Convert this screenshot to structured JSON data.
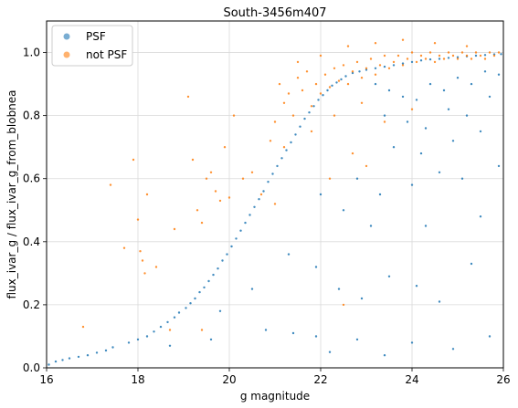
{
  "chart_data": {
    "type": "scatter",
    "title": "South-3456m407",
    "xlabel": "g magnitude",
    "ylabel": "flux_ivar_g / flux_ivar_g_from_blobnea",
    "xlim": [
      16,
      26
    ],
    "ylim": [
      0.0,
      1.1
    ],
    "xticks": [
      16,
      18,
      20,
      22,
      24,
      26
    ],
    "xtick_labels": [
      "16",
      "18",
      "20",
      "22",
      "24",
      "26"
    ],
    "yticks": [
      0.0,
      0.2,
      0.4,
      0.6,
      0.8,
      1.0
    ],
    "ytick_labels": [
      "0.0",
      "0.2",
      "0.4",
      "0.6",
      "0.8",
      "1.0"
    ],
    "grid": true,
    "legend_position": "upper-left",
    "series": [
      {
        "name": "PSF",
        "color": "#1f77b4",
        "points": [
          [
            16.05,
            0.01
          ],
          [
            16.2,
            0.02
          ],
          [
            16.35,
            0.025
          ],
          [
            16.5,
            0.03
          ],
          [
            16.7,
            0.035
          ],
          [
            16.9,
            0.04
          ],
          [
            17.1,
            0.048
          ],
          [
            17.3,
            0.055
          ],
          [
            17.45,
            0.065
          ],
          [
            17.8,
            0.08
          ],
          [
            18.0,
            0.09
          ],
          [
            18.2,
            0.1
          ],
          [
            18.35,
            0.115
          ],
          [
            18.5,
            0.13
          ],
          [
            18.65,
            0.145
          ],
          [
            18.8,
            0.16
          ],
          [
            18.9,
            0.175
          ],
          [
            19.05,
            0.19
          ],
          [
            19.15,
            0.205
          ],
          [
            19.25,
            0.22
          ],
          [
            19.35,
            0.24
          ],
          [
            19.45,
            0.255
          ],
          [
            19.55,
            0.275
          ],
          [
            19.65,
            0.295
          ],
          [
            19.75,
            0.315
          ],
          [
            19.85,
            0.34
          ],
          [
            19.95,
            0.36
          ],
          [
            20.05,
            0.385
          ],
          [
            20.15,
            0.41
          ],
          [
            20.25,
            0.435
          ],
          [
            20.35,
            0.46
          ],
          [
            20.45,
            0.485
          ],
          [
            20.55,
            0.51
          ],
          [
            20.65,
            0.535
          ],
          [
            20.75,
            0.56
          ],
          [
            20.85,
            0.59
          ],
          [
            20.95,
            0.615
          ],
          [
            21.05,
            0.64
          ],
          [
            21.15,
            0.665
          ],
          [
            21.25,
            0.69
          ],
          [
            21.35,
            0.715
          ],
          [
            21.45,
            0.74
          ],
          [
            21.55,
            0.765
          ],
          [
            21.65,
            0.79
          ],
          [
            21.75,
            0.81
          ],
          [
            21.85,
            0.83
          ],
          [
            21.95,
            0.85
          ],
          [
            22.05,
            0.865
          ],
          [
            22.15,
            0.88
          ],
          [
            22.25,
            0.895
          ],
          [
            22.35,
            0.905
          ],
          [
            22.45,
            0.915
          ],
          [
            22.55,
            0.925
          ],
          [
            22.7,
            0.935
          ],
          [
            22.85,
            0.94
          ],
          [
            23.0,
            0.945
          ],
          [
            23.2,
            0.95
          ],
          [
            23.4,
            0.955
          ],
          [
            23.6,
            0.96
          ],
          [
            23.8,
            0.965
          ],
          [
            24.0,
            0.97
          ],
          [
            24.2,
            0.975
          ],
          [
            24.4,
            0.978
          ],
          [
            24.6,
            0.98
          ],
          [
            24.8,
            0.983
          ],
          [
            25.0,
            0.985
          ],
          [
            25.2,
            0.988
          ],
          [
            25.4,
            0.99
          ],
          [
            25.6,
            0.992
          ],
          [
            25.8,
            0.994
          ],
          [
            25.95,
            0.995
          ],
          [
            23.2,
            0.9
          ],
          [
            23.5,
            0.88
          ],
          [
            23.8,
            0.86
          ],
          [
            24.1,
            0.85
          ],
          [
            24.4,
            0.9
          ],
          [
            24.7,
            0.88
          ],
          [
            25.0,
            0.92
          ],
          [
            25.3,
            0.9
          ],
          [
            25.6,
            0.94
          ],
          [
            25.9,
            0.93
          ],
          [
            23.4,
            0.8
          ],
          [
            23.9,
            0.78
          ],
          [
            24.3,
            0.76
          ],
          [
            24.8,
            0.82
          ],
          [
            25.2,
            0.8
          ],
          [
            25.7,
            0.86
          ],
          [
            23.6,
            0.7
          ],
          [
            24.2,
            0.68
          ],
          [
            24.9,
            0.72
          ],
          [
            25.5,
            0.75
          ],
          [
            25.9,
            0.64
          ],
          [
            22.8,
            0.6
          ],
          [
            23.3,
            0.55
          ],
          [
            24.0,
            0.58
          ],
          [
            24.6,
            0.62
          ],
          [
            25.1,
            0.6
          ],
          [
            22.0,
            0.55
          ],
          [
            22.5,
            0.5
          ],
          [
            23.1,
            0.45
          ],
          [
            24.3,
            0.45
          ],
          [
            25.5,
            0.48
          ],
          [
            21.3,
            0.36
          ],
          [
            21.9,
            0.32
          ],
          [
            22.4,
            0.25
          ],
          [
            22.9,
            0.22
          ],
          [
            23.5,
            0.29
          ],
          [
            24.1,
            0.26
          ],
          [
            24.6,
            0.21
          ],
          [
            25.3,
            0.33
          ],
          [
            20.8,
            0.12
          ],
          [
            21.4,
            0.11
          ],
          [
            21.9,
            0.1
          ],
          [
            22.2,
            0.05
          ],
          [
            22.8,
            0.09
          ],
          [
            23.4,
            0.04
          ],
          [
            24.0,
            0.08
          ],
          [
            24.9,
            0.06
          ],
          [
            25.7,
            0.1
          ],
          [
            19.6,
            0.09
          ],
          [
            19.8,
            0.18
          ],
          [
            18.7,
            0.07
          ],
          [
            20.5,
            0.25
          ]
        ]
      },
      {
        "name": "not PSF",
        "color": "#ff7f0e",
        "points": [
          [
            16.8,
            0.13
          ],
          [
            17.4,
            0.58
          ],
          [
            17.7,
            0.38
          ],
          [
            17.9,
            0.66
          ],
          [
            18.0,
            0.47
          ],
          [
            18.05,
            0.37
          ],
          [
            18.1,
            0.34
          ],
          [
            18.15,
            0.3
          ],
          [
            18.2,
            0.55
          ],
          [
            18.4,
            0.32
          ],
          [
            18.7,
            0.12
          ],
          [
            18.8,
            0.44
          ],
          [
            19.1,
            0.86
          ],
          [
            19.2,
            0.66
          ],
          [
            19.3,
            0.5
          ],
          [
            19.4,
            0.46
          ],
          [
            19.5,
            0.6
          ],
          [
            19.6,
            0.62
          ],
          [
            19.7,
            0.56
          ],
          [
            19.8,
            0.53
          ],
          [
            19.9,
            0.7
          ],
          [
            20.1,
            0.8
          ],
          [
            20.3,
            0.6
          ],
          [
            20.5,
            0.62
          ],
          [
            20.7,
            0.55
          ],
          [
            20.9,
            0.72
          ],
          [
            21.0,
            0.78
          ],
          [
            21.1,
            0.9
          ],
          [
            21.2,
            0.84
          ],
          [
            21.3,
            0.87
          ],
          [
            21.4,
            0.8
          ],
          [
            21.5,
            0.92
          ],
          [
            21.6,
            0.88
          ],
          [
            21.7,
            0.94
          ],
          [
            21.8,
            0.83
          ],
          [
            21.9,
            0.9
          ],
          [
            22.0,
            0.87
          ],
          [
            22.1,
            0.93
          ],
          [
            22.2,
            0.89
          ],
          [
            22.3,
            0.95
          ],
          [
            22.4,
            0.91
          ],
          [
            22.5,
            0.96
          ],
          [
            22.6,
            0.9
          ],
          [
            22.7,
            0.94
          ],
          [
            22.8,
            0.97
          ],
          [
            22.9,
            0.92
          ],
          [
            23.0,
            0.95
          ],
          [
            23.1,
            0.98
          ],
          [
            23.2,
            0.93
          ],
          [
            23.3,
            0.96
          ],
          [
            23.4,
            0.99
          ],
          [
            23.5,
            0.95
          ],
          [
            23.6,
            0.97
          ],
          [
            23.7,
            0.99
          ],
          [
            23.8,
            0.96
          ],
          [
            23.9,
            0.98
          ],
          [
            24.0,
            1.0
          ],
          [
            24.1,
            0.97
          ],
          [
            24.2,
            0.99
          ],
          [
            24.3,
            0.98
          ],
          [
            24.4,
            1.0
          ],
          [
            24.5,
            0.97
          ],
          [
            24.6,
            0.99
          ],
          [
            24.7,
            0.98
          ],
          [
            24.8,
            1.0
          ],
          [
            24.9,
            0.99
          ],
          [
            25.0,
            0.98
          ],
          [
            25.1,
            1.0
          ],
          [
            25.2,
            0.99
          ],
          [
            25.3,
            0.98
          ],
          [
            25.4,
            1.0
          ],
          [
            25.5,
            0.99
          ],
          [
            25.6,
            0.98
          ],
          [
            25.7,
            1.0
          ],
          [
            25.8,
            0.99
          ],
          [
            25.9,
            1.0
          ],
          [
            21.5,
            0.97
          ],
          [
            22.0,
            0.99
          ],
          [
            22.6,
            1.02
          ],
          [
            23.2,
            1.03
          ],
          [
            23.8,
            1.04
          ],
          [
            24.5,
            1.03
          ],
          [
            25.2,
            1.02
          ],
          [
            21.2,
            0.7
          ],
          [
            21.8,
            0.75
          ],
          [
            22.3,
            0.8
          ],
          [
            22.9,
            0.84
          ],
          [
            23.4,
            0.78
          ],
          [
            24.0,
            0.82
          ],
          [
            22.2,
            0.6
          ],
          [
            22.7,
            0.68
          ],
          [
            23.0,
            0.64
          ],
          [
            19.4,
            0.12
          ],
          [
            20.0,
            0.54
          ],
          [
            21.0,
            0.52
          ],
          [
            22.5,
            0.2
          ]
        ]
      }
    ]
  }
}
